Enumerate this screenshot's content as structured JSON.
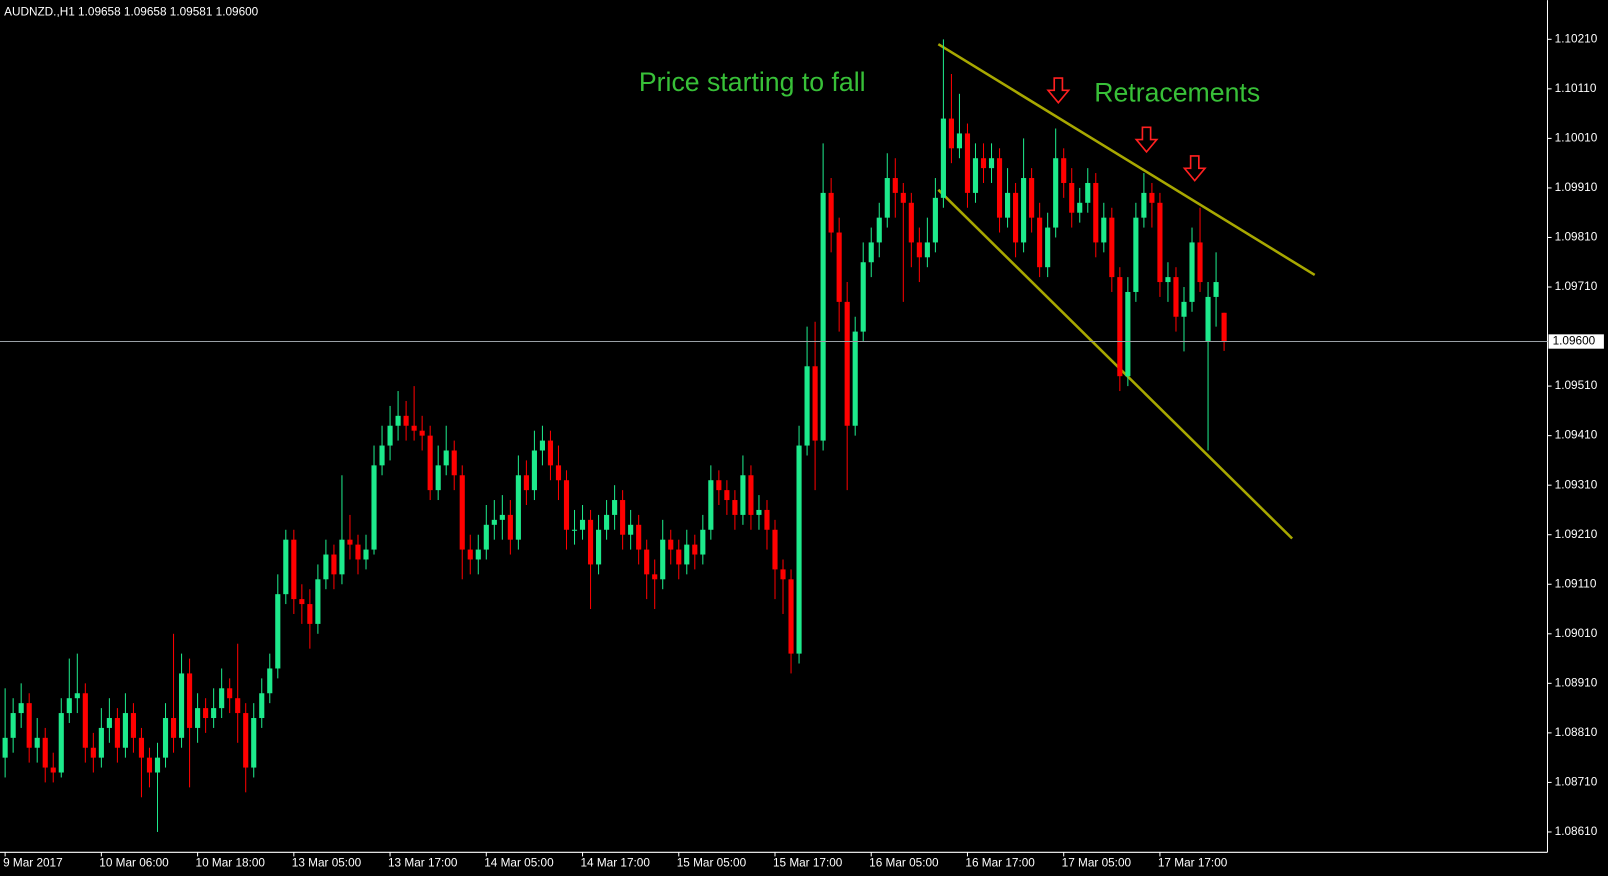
{
  "chart_data": {
    "type": "candlestick",
    "title": "AUDNZD.,H1  1.09658 1.09658 1.09581 1.09600",
    "annotations": [
      "Price starting to fall",
      "Retracements"
    ],
    "up_color": "#1de98b",
    "down_color": "#ff0000",
    "ylim": [
      1.08571,
      1.10285
    ],
    "yticks": [
      {
        "value": 1.1021,
        "label": "1.10210"
      },
      {
        "value": 1.1011,
        "label": "1.10110"
      },
      {
        "value": 1.1001,
        "label": "1.10010"
      },
      {
        "value": 1.0991,
        "label": "1.09910"
      },
      {
        "value": 1.0981,
        "label": "1.09810"
      },
      {
        "value": 1.0971,
        "label": "1.09710"
      },
      {
        "value": 1.0951,
        "label": "1.09510"
      },
      {
        "value": 1.0941,
        "label": "1.09410"
      },
      {
        "value": 1.0931,
        "label": "1.09310"
      },
      {
        "value": 1.0921,
        "label": "1.09210"
      },
      {
        "value": 1.0911,
        "label": "1.09110"
      },
      {
        "value": 1.0901,
        "label": "1.09010"
      },
      {
        "value": 1.0891,
        "label": "1.08910"
      },
      {
        "value": 1.0881,
        "label": "1.08810"
      },
      {
        "value": 1.0871,
        "label": "1.08710"
      },
      {
        "value": 1.0861,
        "label": "1.08610"
      }
    ],
    "current_price": {
      "value": 1.096,
      "label": "1.09600"
    },
    "categories": [
      "9 Mar 2017",
      null,
      null,
      null,
      null,
      null,
      null,
      null,
      null,
      null,
      null,
      null,
      "10 Mar 06:00",
      null,
      null,
      null,
      null,
      null,
      null,
      null,
      null,
      null,
      null,
      null,
      "10 Mar 18:00",
      null,
      null,
      null,
      null,
      null,
      null,
      null,
      null,
      null,
      null,
      null,
      "13 Mar 05:00",
      null,
      null,
      null,
      null,
      null,
      null,
      null,
      null,
      null,
      null,
      null,
      "13 Mar 17:00",
      null,
      null,
      null,
      null,
      null,
      null,
      null,
      null,
      null,
      null,
      null,
      "14 Mar 05:00",
      null,
      null,
      null,
      null,
      null,
      null,
      null,
      null,
      null,
      null,
      null,
      "14 Mar 17:00",
      null,
      null,
      null,
      null,
      null,
      null,
      null,
      null,
      null,
      null,
      null,
      "15 Mar 05:00",
      null,
      null,
      null,
      null,
      null,
      null,
      null,
      null,
      null,
      null,
      null,
      "15 Mar 17:00",
      null,
      null,
      null,
      null,
      null,
      null,
      null,
      null,
      null,
      null,
      null,
      "16 Mar 05:00",
      null,
      null,
      null,
      null,
      null,
      null,
      null,
      null,
      null,
      null,
      null,
      "16 Mar 17:00",
      null,
      null,
      null,
      null,
      null,
      null,
      null,
      null,
      null,
      null,
      null,
      "17 Mar 05:00",
      null,
      null,
      null,
      null,
      null,
      null,
      null,
      null,
      null,
      null,
      null,
      "17 Mar 17:00",
      null,
      null,
      null,
      null,
      null,
      null,
      null,
      null
    ],
    "candles": [
      [
        1.0876,
        1.089,
        1.0872,
        1.088
      ],
      [
        1.088,
        1.0888,
        1.0877,
        1.0885
      ],
      [
        1.0885,
        1.0891,
        1.0882,
        1.0887
      ],
      [
        1.0887,
        1.0889,
        1.0875,
        1.0878
      ],
      [
        1.0878,
        1.0884,
        1.0875,
        1.088
      ],
      [
        1.088,
        1.0882,
        1.0871,
        1.0874
      ],
      [
        1.0874,
        1.0877,
        1.0871,
        1.0873
      ],
      [
        1.0873,
        1.0888,
        1.0872,
        1.0885
      ],
      [
        1.0885,
        1.0896,
        1.0883,
        1.0888
      ],
      [
        1.0888,
        1.0897,
        1.0885,
        1.0889
      ],
      [
        1.0889,
        1.0891,
        1.0875,
        1.0878
      ],
      [
        1.0878,
        1.0881,
        1.0873,
        1.0876
      ],
      [
        1.0876,
        1.0886,
        1.0874,
        1.0882
      ],
      [
        1.0882,
        1.0888,
        1.0879,
        1.0884
      ],
      [
        1.0884,
        1.0886,
        1.0875,
        1.0878
      ],
      [
        1.0878,
        1.0889,
        1.0876,
        1.0885
      ],
      [
        1.0885,
        1.0887,
        1.0877,
        1.088
      ],
      [
        1.088,
        1.0882,
        1.0868,
        1.0876
      ],
      [
        1.0876,
        1.0878,
        1.087,
        1.0873
      ],
      [
        1.0873,
        1.0879,
        1.0861,
        1.0876
      ],
      [
        1.0876,
        1.0887,
        1.0874,
        1.0884
      ],
      [
        1.0884,
        1.0901,
        1.0877,
        1.088
      ],
      [
        1.088,
        1.0897,
        1.0878,
        1.0893
      ],
      [
        1.0893,
        1.0896,
        1.087,
        1.0882
      ],
      [
        1.0882,
        1.0889,
        1.0879,
        1.0886
      ],
      [
        1.0886,
        1.0888,
        1.0881,
        1.0884
      ],
      [
        1.0884,
        1.089,
        1.0882,
        1.0886
      ],
      [
        1.0886,
        1.0894,
        1.0884,
        1.089
      ],
      [
        1.089,
        1.0892,
        1.0885,
        1.0888
      ],
      [
        1.0888,
        1.0899,
        1.0879,
        1.0885
      ],
      [
        1.0885,
        1.0887,
        1.0869,
        1.0874
      ],
      [
        1.0874,
        1.0887,
        1.0872,
        1.0884
      ],
      [
        1.0884,
        1.0892,
        1.0882,
        1.0889
      ],
      [
        1.0889,
        1.0897,
        1.0887,
        1.0894
      ],
      [
        1.0894,
        1.0913,
        1.0892,
        1.0909
      ],
      [
        1.0909,
        1.0922,
        1.0907,
        1.092
      ],
      [
        1.092,
        1.0922,
        1.0905,
        1.0908
      ],
      [
        1.0908,
        1.0911,
        1.0903,
        1.0907
      ],
      [
        1.0907,
        1.091,
        1.0898,
        1.0903
      ],
      [
        1.0903,
        1.0915,
        1.0901,
        1.0912
      ],
      [
        1.0912,
        1.092,
        1.091,
        1.0917
      ],
      [
        1.0917,
        1.0919,
        1.091,
        1.0913
      ],
      [
        1.0913,
        1.0933,
        1.0911,
        1.092
      ],
      [
        1.092,
        1.0925,
        1.0916,
        1.0919
      ],
      [
        1.0919,
        1.0921,
        1.0913,
        1.0916
      ],
      [
        1.0916,
        1.0921,
        1.0914,
        1.0918
      ],
      [
        1.0918,
        1.0939,
        1.0917,
        1.0935
      ],
      [
        1.0935,
        1.0943,
        1.0933,
        1.0939
      ],
      [
        1.0939,
        1.0947,
        1.0936,
        1.0943
      ],
      [
        1.0943,
        1.095,
        1.094,
        1.0945
      ],
      [
        1.0945,
        1.0948,
        1.094,
        1.0943
      ],
      [
        1.0943,
        1.0951,
        1.094,
        1.0942
      ],
      [
        1.0942,
        1.0945,
        1.0938,
        1.0941
      ],
      [
        1.0941,
        1.0943,
        1.0928,
        1.093
      ],
      [
        1.093,
        1.0939,
        1.0928,
        1.0935
      ],
      [
        1.0935,
        1.0943,
        1.0933,
        1.0938
      ],
      [
        1.0938,
        1.094,
        1.093,
        1.0933
      ],
      [
        1.0933,
        1.0935,
        1.0912,
        1.0918
      ],
      [
        1.0918,
        1.0921,
        1.0913,
        1.0916
      ],
      [
        1.0916,
        1.0921,
        1.0913,
        1.0918
      ],
      [
        1.0918,
        1.0927,
        1.0916,
        1.0923
      ],
      [
        1.0923,
        1.0928,
        1.092,
        1.0924
      ],
      [
        1.0924,
        1.0929,
        1.092,
        1.0925
      ],
      [
        1.0925,
        1.0928,
        1.0917,
        1.092
      ],
      [
        1.092,
        1.0937,
        1.0918,
        1.0933
      ],
      [
        1.0933,
        1.0936,
        1.0927,
        1.093
      ],
      [
        1.093,
        1.0942,
        1.0928,
        1.0938
      ],
      [
        1.0938,
        1.0943,
        1.0935,
        1.094
      ],
      [
        1.094,
        1.0942,
        1.0932,
        1.0935
      ],
      [
        1.0935,
        1.0939,
        1.0928,
        1.0932
      ],
      [
        1.0932,
        1.0934,
        1.0918,
        1.0922
      ],
      [
        1.0922,
        1.0926,
        1.0919,
        1.0922
      ],
      [
        1.0922,
        1.0927,
        1.092,
        1.0924
      ],
      [
        1.0924,
        1.0926,
        1.0906,
        1.0915
      ],
      [
        1.0915,
        1.0925,
        1.0913,
        1.0922
      ],
      [
        1.0922,
        1.0928,
        1.092,
        1.0925
      ],
      [
        1.0925,
        1.0931,
        1.0922,
        1.0928
      ],
      [
        1.0928,
        1.093,
        1.0918,
        1.0921
      ],
      [
        1.0921,
        1.0926,
        1.0918,
        1.0923
      ],
      [
        1.0923,
        1.0925,
        1.0915,
        1.0918
      ],
      [
        1.0918,
        1.092,
        1.0908,
        1.0913
      ],
      [
        1.0913,
        1.0916,
        1.0906,
        1.0912
      ],
      [
        1.0912,
        1.0924,
        1.091,
        1.092
      ],
      [
        1.092,
        1.0922,
        1.0915,
        1.0918
      ],
      [
        1.0918,
        1.092,
        1.0912,
        1.0915
      ],
      [
        1.0915,
        1.0922,
        1.0913,
        1.0919
      ],
      [
        1.0919,
        1.0921,
        1.0914,
        1.0917
      ],
      [
        1.0917,
        1.0925,
        1.0915,
        1.0922
      ],
      [
        1.0922,
        1.0935,
        1.092,
        1.0932
      ],
      [
        1.0932,
        1.0934,
        1.0927,
        1.093
      ],
      [
        1.093,
        1.0932,
        1.0925,
        1.0928
      ],
      [
        1.0928,
        1.093,
        1.0922,
        1.0925
      ],
      [
        1.0925,
        1.0937,
        1.0923,
        1.0933
      ],
      [
        1.0933,
        1.0935,
        1.0922,
        1.0925
      ],
      [
        1.0925,
        1.0929,
        1.0922,
        1.0926
      ],
      [
        1.0926,
        1.0928,
        1.0918,
        1.0922
      ],
      [
        1.0922,
        1.0924,
        1.0908,
        1.0914
      ],
      [
        1.0914,
        1.0916,
        1.0905,
        1.0912
      ],
      [
        1.0912,
        1.0914,
        1.0893,
        1.0897
      ],
      [
        1.0897,
        1.0943,
        1.0895,
        1.0939
      ],
      [
        1.0939,
        1.0963,
        1.0937,
        1.0955
      ],
      [
        1.0955,
        1.0964,
        1.093,
        1.094
      ],
      [
        1.094,
        1.1,
        1.0938,
        1.099
      ],
      [
        1.099,
        1.0993,
        1.0978,
        1.0982
      ],
      [
        1.0982,
        1.0985,
        1.0962,
        1.0968
      ],
      [
        1.0968,
        1.0972,
        1.093,
        1.0943
      ],
      [
        1.0943,
        1.0965,
        1.0941,
        1.0962
      ],
      [
        1.0962,
        1.098,
        1.096,
        1.0976
      ],
      [
        1.0976,
        1.0983,
        1.0973,
        1.098
      ],
      [
        1.098,
        1.0988,
        1.0977,
        1.0985
      ],
      [
        1.0985,
        1.0998,
        1.0983,
        1.0993
      ],
      [
        1.0993,
        1.0997,
        1.0985,
        1.099
      ],
      [
        1.099,
        1.0992,
        1.0968,
        1.0988
      ],
      [
        1.0988,
        1.099,
        1.0975,
        1.098
      ],
      [
        1.098,
        1.0983,
        1.0972,
        1.0977
      ],
      [
        1.0977,
        1.0985,
        1.0975,
        1.098
      ],
      [
        1.098,
        1.0993,
        1.0978,
        1.0989
      ],
      [
        1.0989,
        1.1021,
        1.0987,
        1.1005
      ],
      [
        1.1005,
        1.1014,
        1.0996,
        1.0999
      ],
      [
        1.0999,
        1.101,
        1.0997,
        1.1002
      ],
      [
        1.1002,
        1.1004,
        1.0987,
        1.099
      ],
      [
        1.099,
        1.1,
        1.0988,
        1.0997
      ],
      [
        1.0997,
        1.1,
        1.0992,
        1.0995
      ],
      [
        1.0995,
        1.1,
        1.0992,
        1.0997
      ],
      [
        1.0997,
        1.0999,
        1.0982,
        1.0985
      ],
      [
        1.0985,
        1.0995,
        1.0983,
        1.099
      ],
      [
        1.099,
        1.0992,
        1.0977,
        1.098
      ],
      [
        1.098,
        1.1001,
        1.0978,
        1.0993
      ],
      [
        1.0993,
        1.0995,
        1.0982,
        1.0985
      ],
      [
        1.0985,
        1.0988,
        1.0973,
        1.0975
      ],
      [
        1.0975,
        1.0986,
        1.0973,
        1.0983
      ],
      [
        1.0983,
        1.1003,
        1.0981,
        1.0997
      ],
      [
        1.0997,
        1.0999,
        1.0989,
        1.0992
      ],
      [
        1.0992,
        1.0995,
        1.0983,
        1.0986
      ],
      [
        1.0986,
        1.0991,
        1.0984,
        1.0988
      ],
      [
        1.0988,
        1.0995,
        1.0986,
        1.0992
      ],
      [
        1.0992,
        1.0994,
        1.0977,
        1.098
      ],
      [
        1.098,
        1.0988,
        1.0978,
        1.0985
      ],
      [
        1.0985,
        1.0987,
        1.097,
        1.0973
      ],
      [
        1.0973,
        1.0975,
        1.095,
        1.0953
      ],
      [
        1.0953,
        1.0973,
        1.0951,
        1.097
      ],
      [
        1.097,
        1.0988,
        1.0968,
        1.0985
      ],
      [
        1.0985,
        1.0994,
        1.0983,
        1.099
      ],
      [
        1.099,
        1.0992,
        1.0983,
        1.0988
      ],
      [
        1.0988,
        1.099,
        1.0969,
        1.0972
      ],
      [
        1.0972,
        1.0976,
        1.0968,
        1.0973
      ],
      [
        1.0973,
        1.0975,
        1.0962,
        1.0965
      ],
      [
        1.0965,
        1.0971,
        1.0958,
        1.0968
      ],
      [
        1.0968,
        1.0983,
        1.0966,
        1.098
      ],
      [
        1.098,
        1.0987,
        1.097,
        1.0972
      ],
      [
        1.096,
        1.0972,
        1.0938,
        1.0969
      ],
      [
        1.0969,
        1.0978,
        1.0963,
        1.0972
      ],
      [
        1.09658,
        1.09658,
        1.09581,
        1.096
      ]
    ]
  }
}
